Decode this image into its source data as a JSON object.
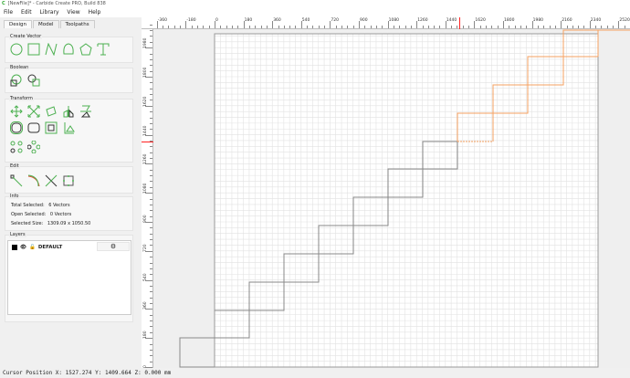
{
  "window": {
    "title": "[NewFile]* - Carbide Create PRO, Build 838",
    "logo": "C"
  },
  "menu": [
    "File",
    "Edit",
    "Library",
    "View",
    "Help"
  ],
  "tabs": [
    {
      "label": "Design",
      "active": true
    },
    {
      "label": "Model"
    },
    {
      "label": "Toolpaths"
    }
  ],
  "groups": {
    "create_vector": "Create Vector",
    "boolean": "Boolean",
    "transform": "Transform",
    "edit": "Edit",
    "info": "Info",
    "layers": "Layers"
  },
  "info": {
    "total_selected_label": "Total Selected:",
    "total_selected": "6 Vectors",
    "open_selected_label": "Open Selected:",
    "open_selected": "0 Vectors",
    "selected_size_label": "Selected Size:",
    "selected_size": "1309.09 x 1050.50"
  },
  "layers": [
    {
      "name": "DEFAULT",
      "color": "#000000",
      "visible": true,
      "locked": false
    }
  ],
  "ruler": {
    "x_labels": [
      "-360",
      "-180",
      "0",
      "180",
      "360",
      "540",
      "720",
      "900",
      "1080",
      "1260",
      "1440",
      "1620",
      "1800",
      "1980",
      "2160",
      "2340",
      "2520"
    ],
    "y_labels": [
      "0",
      "180",
      "360",
      "540",
      "720",
      "900",
      "1080",
      "1260",
      "1440",
      "1620",
      "1800",
      "1980"
    ],
    "cursor_marker_color": "#ff2020"
  },
  "status": {
    "cursor": "Cursor Position X: 1527.274 Y: 1409.664 Z: 0.000 mm"
  },
  "colors": {
    "accent": "#4cb050",
    "selected": "#f5a060",
    "vector": "#888888"
  }
}
